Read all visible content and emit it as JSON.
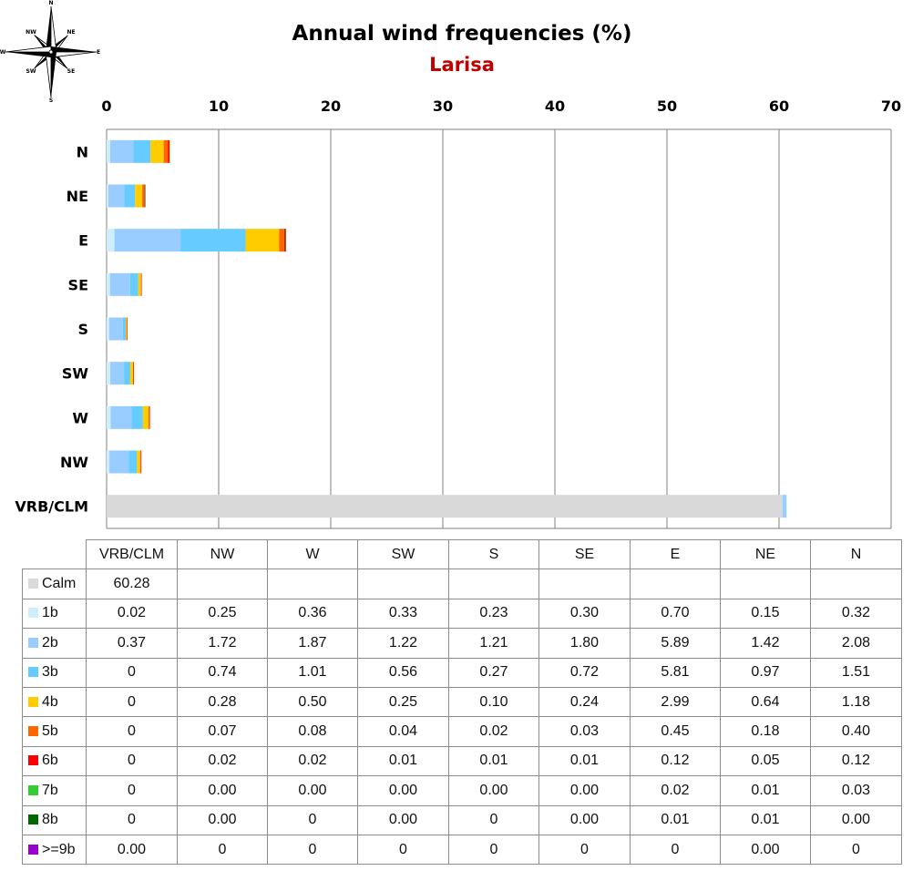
{
  "chart_data": {
    "type": "bar",
    "orientation": "horizontal",
    "stacked": true,
    "title": "Annual wind frequencies (%)",
    "subtitle": "Larisa",
    "categories": [
      "N",
      "NE",
      "E",
      "SE",
      "S",
      "SW",
      "W",
      "NW",
      "VRB/CLM"
    ],
    "xlim": [
      0,
      70
    ],
    "xticks": [
      "0",
      "10",
      "20",
      "30",
      "40",
      "50",
      "60",
      "70"
    ],
    "grid": true,
    "legend": "table-below",
    "series": [
      {
        "name": "Calm",
        "color": "#d9d9d9",
        "values": [
          0,
          0,
          0,
          0,
          0,
          0,
          0,
          0,
          60.28
        ]
      },
      {
        "name": "1b",
        "color": "#cfeefb",
        "values": [
          0.32,
          0.15,
          0.7,
          0.3,
          0.23,
          0.33,
          0.36,
          0.25,
          0.02
        ]
      },
      {
        "name": "2b",
        "color": "#99ccff",
        "values": [
          2.08,
          1.42,
          5.89,
          1.8,
          1.21,
          1.22,
          1.87,
          1.72,
          0.37
        ]
      },
      {
        "name": "3b",
        "color": "#66ccff",
        "values": [
          1.51,
          0.97,
          5.81,
          0.72,
          0.27,
          0.56,
          1.01,
          0.74,
          0
        ]
      },
      {
        "name": "4b",
        "color": "#ffcc00",
        "values": [
          1.18,
          0.64,
          2.99,
          0.24,
          0.1,
          0.25,
          0.5,
          0.28,
          0
        ]
      },
      {
        "name": "5b",
        "color": "#ff6600",
        "values": [
          0.4,
          0.18,
          0.45,
          0.03,
          0.02,
          0.04,
          0.08,
          0.07,
          0
        ]
      },
      {
        "name": "6b",
        "color": "#ff0000",
        "values": [
          0.12,
          0.05,
          0.12,
          0.01,
          0.01,
          0.01,
          0.02,
          0.02,
          0
        ]
      },
      {
        "name": "7b",
        "color": "#33cc33",
        "values": [
          0.03,
          0.01,
          0.02,
          0.0,
          0.0,
          0.0,
          0.0,
          0.0,
          0
        ]
      },
      {
        "name": "8b",
        "color": "#006600",
        "values": [
          0.0,
          0.01,
          0.01,
          0.0,
          0,
          0.0,
          0,
          0.0,
          0
        ]
      },
      {
        "name": ">=9b",
        "color": "#9900cc",
        "values": [
          0,
          0.0,
          0,
          0,
          0,
          0,
          0,
          0,
          0.0
        ]
      }
    ]
  },
  "compass": {
    "labels": [
      "N",
      "NE",
      "E",
      "SE",
      "S",
      "SW",
      "W",
      "NW"
    ]
  },
  "table": {
    "columns": [
      "VRB/CLM",
      "NW",
      "W",
      "SW",
      "S",
      "SE",
      "E",
      "NE",
      "N"
    ],
    "rows": [
      {
        "label": "Calm",
        "color": "#d9d9d9",
        "cells": [
          "60.28",
          "",
          "",
          "",
          "",
          "",
          "",
          "",
          ""
        ]
      },
      {
        "label": "1b",
        "color": "#cfeefb",
        "cells": [
          "0.02",
          "0.25",
          "0.36",
          "0.33",
          "0.23",
          "0.30",
          "0.70",
          "0.15",
          "0.32"
        ]
      },
      {
        "label": "2b",
        "color": "#99ccff",
        "cells": [
          "0.37",
          "1.72",
          "1.87",
          "1.22",
          "1.21",
          "1.80",
          "5.89",
          "1.42",
          "2.08"
        ]
      },
      {
        "label": "3b",
        "color": "#66ccff",
        "cells": [
          "0",
          "0.74",
          "1.01",
          "0.56",
          "0.27",
          "0.72",
          "5.81",
          "0.97",
          "1.51"
        ]
      },
      {
        "label": "4b",
        "color": "#ffcc00",
        "cells": [
          "0",
          "0.28",
          "0.50",
          "0.25",
          "0.10",
          "0.24",
          "2.99",
          "0.64",
          "1.18"
        ]
      },
      {
        "label": "5b",
        "color": "#ff6600",
        "cells": [
          "0",
          "0.07",
          "0.08",
          "0.04",
          "0.02",
          "0.03",
          "0.45",
          "0.18",
          "0.40"
        ]
      },
      {
        "label": "6b",
        "color": "#ff0000",
        "cells": [
          "0",
          "0.02",
          "0.02",
          "0.01",
          "0.01",
          "0.01",
          "0.12",
          "0.05",
          "0.12"
        ]
      },
      {
        "label": "7b",
        "color": "#33cc33",
        "cells": [
          "0",
          "0.00",
          "0.00",
          "0.00",
          "0.00",
          "0.00",
          "0.02",
          "0.01",
          "0.03"
        ]
      },
      {
        "label": "8b",
        "color": "#006600",
        "cells": [
          "0",
          "0.00",
          "0",
          "0.00",
          "0",
          "0.00",
          "0.01",
          "0.01",
          "0.00"
        ]
      },
      {
        "label": ">=9b",
        "color": "#9900cc",
        "cells": [
          "0.00",
          "0",
          "0",
          "0",
          "0",
          "0",
          "0",
          "0.00",
          "0"
        ]
      }
    ]
  },
  "colors": {
    "subtitle": "#c00000",
    "grid": "#808080"
  }
}
